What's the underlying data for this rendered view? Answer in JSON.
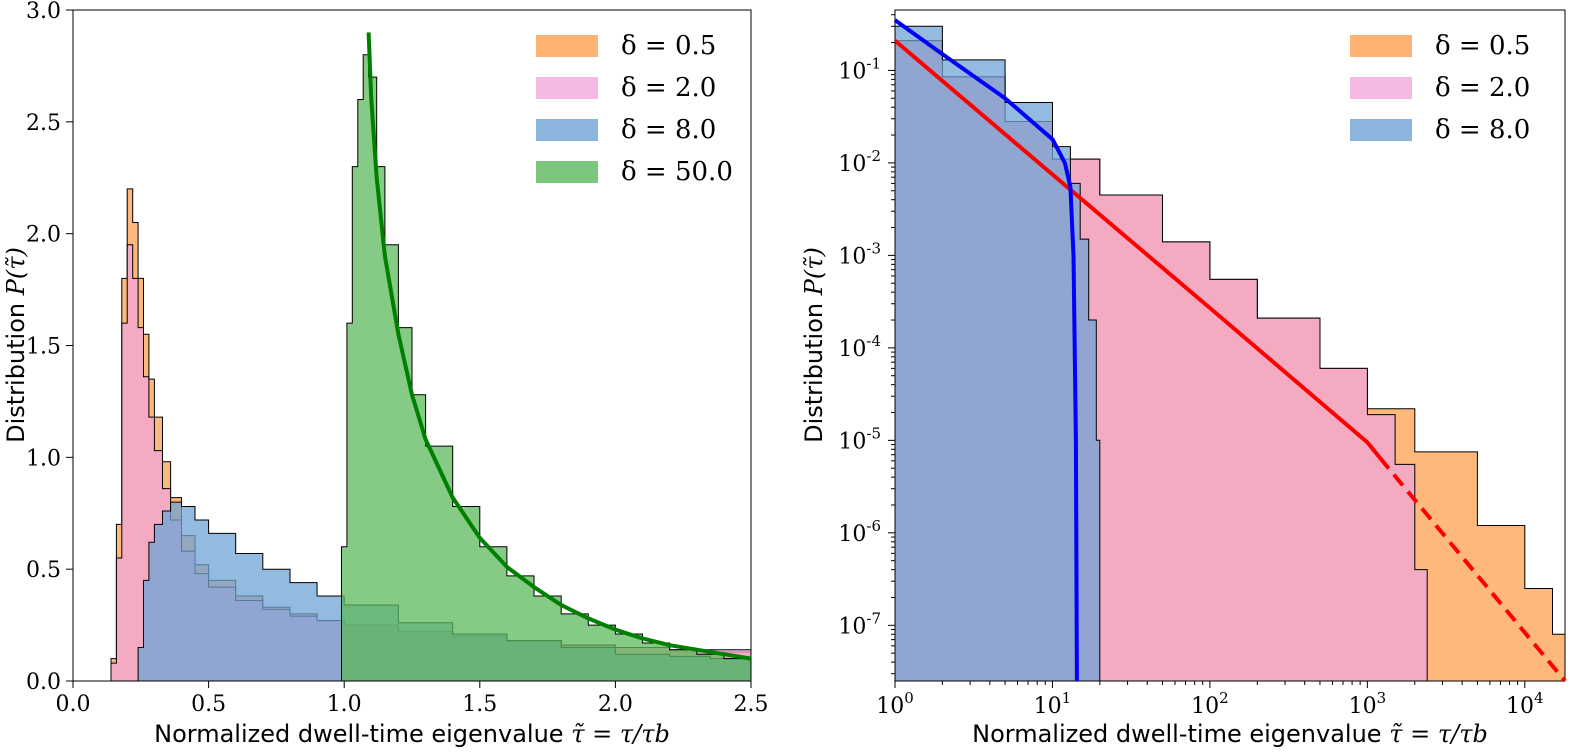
{
  "chart_data": [
    {
      "type": "histogram",
      "xlabel": "Normalized dwell-time eigenvalue",
      "xlabel_math": "τ̃ = τ/τb",
      "ylabel": "Distribution",
      "ylabel_math": "P(τ̃)",
      "xlim": [
        0.0,
        2.5
      ],
      "ylim": [
        0.0,
        3.0
      ],
      "xscale": "linear",
      "yscale": "linear",
      "xticks": [
        "0.0",
        "0.5",
        "1.0",
        "1.5",
        "2.0",
        "2.5"
      ],
      "yticks": [
        "0.0",
        "0.5",
        "1.0",
        "1.5",
        "2.0",
        "2.5",
        "3.0"
      ],
      "legend_position": "top-right",
      "series": [
        {
          "name": "δ = 0.5",
          "color": "#ffa04f",
          "x": [
            0.12,
            0.14,
            0.16,
            0.18,
            0.2,
            0.22,
            0.24,
            0.26,
            0.28,
            0.3,
            0.33,
            0.36,
            0.4,
            0.45,
            0.5,
            0.6,
            0.7,
            0.8,
            0.9,
            1.0,
            1.2,
            1.4,
            1.6,
            1.8,
            2.0,
            2.2,
            2.5
          ],
          "y": [
            0.0,
            0.1,
            0.7,
            1.8,
            2.2,
            2.05,
            1.8,
            1.55,
            1.35,
            1.18,
            0.98,
            0.82,
            0.65,
            0.52,
            0.45,
            0.38,
            0.33,
            0.3,
            0.27,
            0.25,
            0.22,
            0.2,
            0.18,
            0.16,
            0.15,
            0.13,
            0.12
          ]
        },
        {
          "name": "δ = 2.0",
          "color": "#f0a7d8",
          "x": [
            0.12,
            0.14,
            0.16,
            0.18,
            0.2,
            0.22,
            0.24,
            0.26,
            0.28,
            0.3,
            0.33,
            0.36,
            0.4,
            0.45,
            0.5,
            0.6,
            0.7,
            0.8,
            0.9,
            1.0,
            1.2,
            1.4,
            1.6,
            1.8,
            2.0,
            2.2,
            2.5
          ],
          "y": [
            0.0,
            0.08,
            0.55,
            1.6,
            1.95,
            1.8,
            1.58,
            1.36,
            1.18,
            1.03,
            0.86,
            0.72,
            0.58,
            0.48,
            0.42,
            0.36,
            0.32,
            0.29,
            0.27,
            0.25,
            0.22,
            0.2,
            0.18,
            0.16,
            0.15,
            0.14,
            0.12
          ]
        },
        {
          "name": "δ = 8.0",
          "color": "#6fa3d4",
          "x": [
            0.22,
            0.24,
            0.26,
            0.28,
            0.3,
            0.33,
            0.36,
            0.4,
            0.45,
            0.5,
            0.6,
            0.7,
            0.8,
            0.9,
            1.0,
            1.2,
            1.4,
            1.6,
            1.8,
            2.0,
            2.2,
            2.35,
            2.5
          ],
          "y": [
            0.0,
            0.15,
            0.45,
            0.62,
            0.7,
            0.76,
            0.8,
            0.78,
            0.72,
            0.66,
            0.57,
            0.5,
            0.44,
            0.38,
            0.34,
            0.26,
            0.21,
            0.18,
            0.15,
            0.12,
            0.11,
            0.1,
            0.09
          ]
        },
        {
          "name": "δ = 50.0",
          "color": "#5cb85c",
          "x": [
            0.97,
            0.99,
            1.01,
            1.03,
            1.05,
            1.07,
            1.09,
            1.12,
            1.15,
            1.2,
            1.25,
            1.3,
            1.4,
            1.5,
            1.6,
            1.7,
            1.8,
            1.9,
            2.0,
            2.1,
            2.2,
            2.3,
            2.4,
            2.5
          ],
          "y": [
            0.0,
            0.6,
            1.6,
            2.3,
            2.6,
            2.8,
            2.7,
            2.3,
            1.95,
            1.58,
            1.28,
            1.05,
            0.78,
            0.6,
            0.47,
            0.38,
            0.3,
            0.25,
            0.21,
            0.17,
            0.14,
            0.12,
            0.1,
            0.08
          ]
        }
      ],
      "fit_curves": [
        {
          "color": "#008000",
          "x": [
            1.09,
            1.1,
            1.12,
            1.15,
            1.2,
            1.25,
            1.3,
            1.4,
            1.5,
            1.6,
            1.7,
            1.8,
            1.9,
            2.0,
            2.1,
            2.2,
            2.3,
            2.4,
            2.5
          ],
          "y": [
            2.9,
            2.6,
            2.25,
            1.9,
            1.55,
            1.28,
            1.08,
            0.82,
            0.64,
            0.51,
            0.42,
            0.34,
            0.28,
            0.23,
            0.19,
            0.16,
            0.14,
            0.12,
            0.1
          ]
        }
      ]
    },
    {
      "type": "histogram",
      "xlabel": "Normalized dwell-time eigenvalue",
      "xlabel_math": "τ̃ = τ/τb",
      "ylabel": "Distribution",
      "ylabel_math": "P(τ̃)",
      "xlim": [
        1,
        18000
      ],
      "ylim": [
        2.5e-08,
        0.45
      ],
      "xscale": "log",
      "yscale": "log",
      "xtick_exponents": [
        0,
        1,
        2,
        3,
        4
      ],
      "ytick_exponents": [
        -1,
        -2,
        -3,
        -4,
        -5,
        -6,
        -7
      ],
      "legend_position": "top-right",
      "series": [
        {
          "name": "δ = 0.5",
          "color": "#ffa04f",
          "x": [
            1,
            2,
            5,
            10,
            20,
            50,
            100,
            200,
            500,
            1000,
            2000,
            5000,
            10000,
            15000,
            18000
          ],
          "y": [
            0.21,
            0.085,
            0.028,
            0.011,
            0.0045,
            0.0014,
            0.00055,
            0.00021,
            6e-05,
            2.2e-05,
            7.5e-06,
            1.2e-06,
            2.5e-07,
            8e-08,
            2.5e-08
          ]
        },
        {
          "name": "δ = 2.0",
          "color": "#f0a7d8",
          "x": [
            1,
            2,
            5,
            10,
            20,
            50,
            100,
            200,
            500,
            1000,
            1500,
            2000,
            2400
          ],
          "y": [
            0.21,
            0.085,
            0.028,
            0.011,
            0.0045,
            0.0014,
            0.00055,
            0.00021,
            6e-05,
            1.9e-05,
            5.5e-06,
            4e-07,
            2.5e-08
          ]
        },
        {
          "name": "δ = 8.0",
          "color": "#6fa3d4",
          "x": [
            1,
            2,
            5,
            10,
            13,
            15,
            17,
            19,
            20
          ],
          "y": [
            0.3,
            0.13,
            0.045,
            0.015,
            0.006,
            0.0015,
            0.0002,
            1e-05,
            2.5e-08
          ]
        }
      ],
      "fit_curves": [
        {
          "color": "#ff0000",
          "style": "solid",
          "x": [
            1,
            10,
            100,
            1000,
            1200
          ],
          "y": [
            0.21,
            0.0075,
            0.00027,
            9.5e-06,
            6.5e-06
          ]
        },
        {
          "color": "#ff0000",
          "style": "dashed",
          "x": [
            1200,
            18000
          ],
          "y": [
            6.5e-06,
            2.2e-08
          ]
        },
        {
          "color": "#0000ff",
          "style": "solid",
          "x": [
            1,
            2,
            5,
            10,
            12,
            13,
            13.6,
            14.1,
            14.3
          ],
          "y": [
            0.35,
            0.15,
            0.05,
            0.018,
            0.01,
            0.0055,
            0.001,
            1e-05,
            2.5e-08
          ]
        }
      ]
    }
  ]
}
